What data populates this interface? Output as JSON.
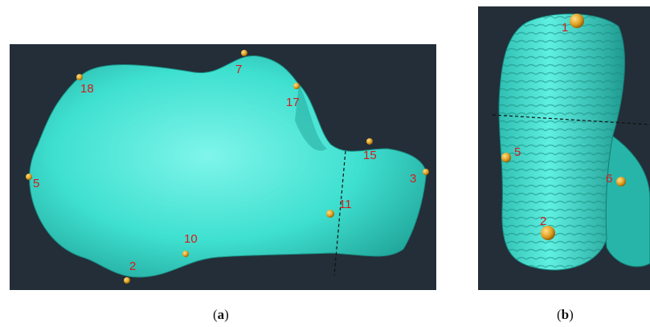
{
  "panel_a": {
    "caption_open": "(",
    "caption_letter": "a",
    "caption_close": ")",
    "landmarks": [
      {
        "id": "lm-18",
        "label": "18"
      },
      {
        "id": "lm-7",
        "label": "7"
      },
      {
        "id": "lm-17",
        "label": "17"
      },
      {
        "id": "lm-15",
        "label": "15"
      },
      {
        "id": "lm-5",
        "label": "5"
      },
      {
        "id": "lm-3",
        "label": "3"
      },
      {
        "id": "lm-11",
        "label": "11"
      },
      {
        "id": "lm-10",
        "label": "10"
      },
      {
        "id": "lm-2",
        "label": "2"
      }
    ]
  },
  "panel_b": {
    "caption_open": "(",
    "caption_letter": "b",
    "caption_close": ")",
    "landmarks": [
      {
        "id": "lm-1",
        "label": "1"
      },
      {
        "id": "lm-5",
        "label": "5"
      },
      {
        "id": "lm-6",
        "label": "6"
      },
      {
        "id": "lm-2",
        "label": "2"
      }
    ]
  },
  "colors": {
    "background": "#232e38",
    "bone": "#3fe0d0",
    "landmark": "#e0a020",
    "label": "#d61a1a"
  }
}
